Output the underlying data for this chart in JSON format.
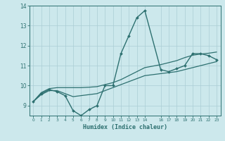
{
  "xlabel": "Humidex (Indice chaleur)",
  "bg_color": "#cce8ec",
  "line_color": "#2d7070",
  "grid_color": "#aacdd4",
  "x_data": [
    0,
    1,
    2,
    3,
    4,
    5,
    6,
    7,
    8,
    9,
    10,
    11,
    12,
    13,
    14,
    16,
    17,
    18,
    19,
    20,
    21,
    22,
    23
  ],
  "y_main": [
    9.2,
    9.6,
    9.8,
    9.7,
    9.5,
    8.75,
    8.5,
    8.8,
    9.0,
    10.0,
    10.0,
    11.6,
    12.5,
    13.4,
    13.75,
    10.8,
    10.7,
    10.85,
    11.0,
    11.6,
    11.6,
    11.5,
    11.3
  ],
  "y_low": [
    9.2,
    9.55,
    9.75,
    9.75,
    9.6,
    9.45,
    9.5,
    9.55,
    9.6,
    9.75,
    9.9,
    10.05,
    10.2,
    10.35,
    10.5,
    10.6,
    10.65,
    10.7,
    10.8,
    10.9,
    11.0,
    11.1,
    11.2
  ],
  "y_high": [
    9.2,
    9.65,
    9.85,
    9.9,
    9.9,
    9.9,
    9.9,
    9.92,
    9.95,
    10.05,
    10.15,
    10.3,
    10.5,
    10.7,
    10.9,
    11.05,
    11.15,
    11.25,
    11.4,
    11.52,
    11.58,
    11.62,
    11.68
  ],
  "ylim": [
    8.5,
    14.0
  ],
  "xlim": [
    -0.5,
    23.5
  ],
  "yticks": [
    9,
    10,
    11,
    12,
    13,
    14
  ],
  "xticks": [
    0,
    1,
    2,
    3,
    4,
    5,
    6,
    7,
    8,
    9,
    10,
    11,
    12,
    13,
    14,
    16,
    17,
    18,
    19,
    20,
    21,
    22,
    23
  ],
  "xtick_labels": [
    "0",
    "1",
    "2",
    "3",
    "4",
    "5",
    "6",
    "7",
    "8",
    "9",
    "10",
    "11",
    "12",
    "13",
    "14",
    "16",
    "17",
    "18",
    "19",
    "20",
    "21",
    "22",
    "23"
  ]
}
